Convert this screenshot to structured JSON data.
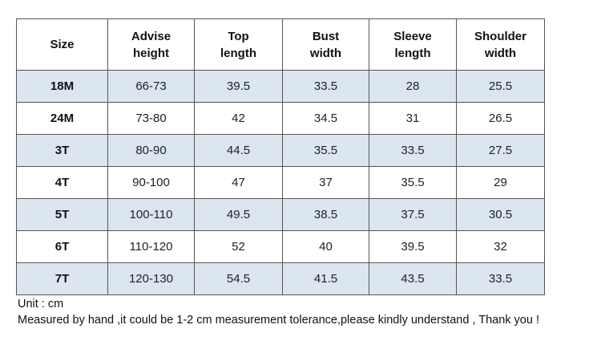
{
  "table": {
    "headers": [
      [
        "Size"
      ],
      [
        "Advise",
        "height"
      ],
      [
        "Top",
        "length"
      ],
      [
        "Bust",
        "width"
      ],
      [
        "Sleeve",
        "length"
      ],
      [
        "Shoulder",
        "width"
      ]
    ],
    "rows": [
      [
        "18M",
        "66-73",
        "39.5",
        "33.5",
        "28",
        "25.5"
      ],
      [
        "24M",
        "73-80",
        "42",
        "34.5",
        "31",
        "26.5"
      ],
      [
        "3T",
        "80-90",
        "44.5",
        "35.5",
        "33.5",
        "27.5"
      ],
      [
        "4T",
        "90-100",
        "47",
        "37",
        "35.5",
        "29"
      ],
      [
        "5T",
        "100-110",
        "49.5",
        "38.5",
        "37.5",
        "30.5"
      ],
      [
        "6T",
        "110-120",
        "52",
        "40",
        "39.5",
        "32"
      ],
      [
        "7T",
        "120-130",
        "54.5",
        "41.5",
        "43.5",
        "33.5"
      ]
    ],
    "row_shading": [
      "shade",
      "plain",
      "shade",
      "plain",
      "shade",
      "plain",
      "shade"
    ],
    "shade_color": "#dbe6f1"
  },
  "notes": {
    "unit": "Unit : cm",
    "disclaimer": "Measured by hand ,it could be 1-2 cm measurement tolerance,please kindly understand , Thank you !"
  }
}
